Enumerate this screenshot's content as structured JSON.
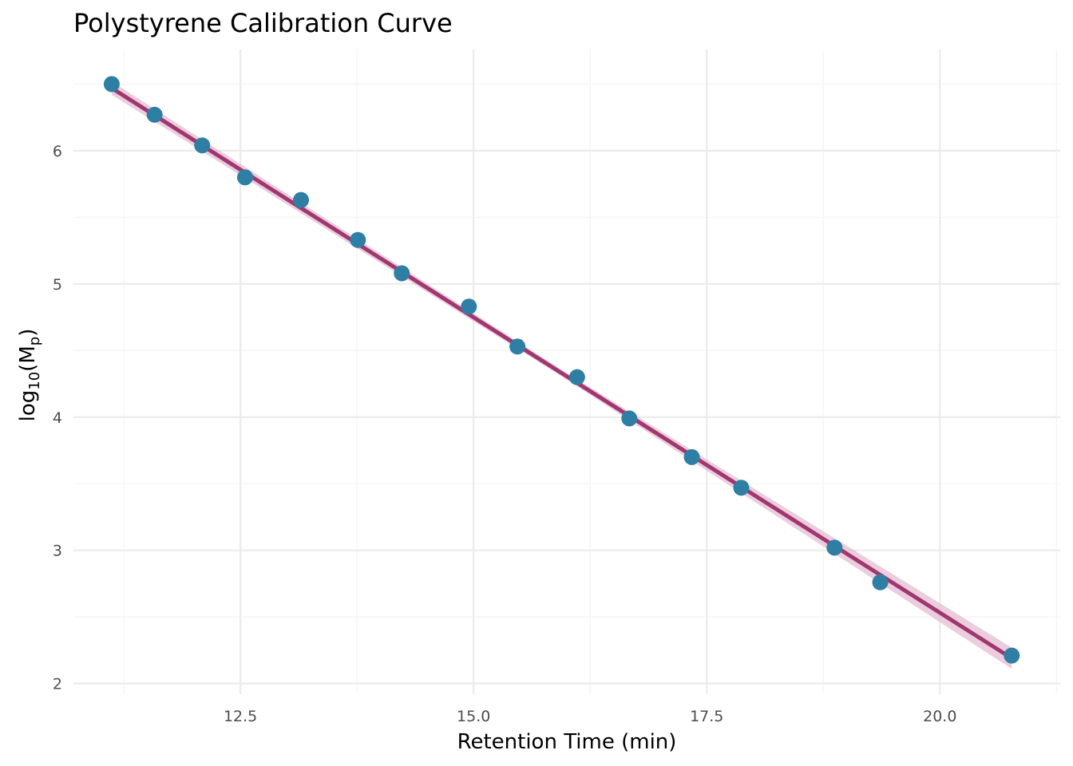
{
  "chart_data": {
    "type": "scatter",
    "title": "Polystyrene Calibration Curve",
    "xlabel": "Retention Time (min)",
    "ylabel": {
      "prefix": "log",
      "prefix_sub": "10",
      "open": "(M",
      "var_sub": "p",
      "close": ")"
    },
    "xlim": [
      10.71,
      21.29
    ],
    "ylim": [
      1.92,
      6.76
    ],
    "x_ticks": [
      12.5,
      15.0,
      17.5,
      20.0
    ],
    "x_tick_labels": [
      "12.5",
      "15.0",
      "17.5",
      "20.0"
    ],
    "y_ticks": [
      2,
      3,
      4,
      5,
      6
    ],
    "y_tick_labels": [
      "2",
      "3",
      "4",
      "5",
      "6"
    ],
    "grid": true,
    "legend": "none",
    "colors": {
      "points": "#2e7fa3",
      "fit_line": "#a0386f",
      "fit_band": "#e3b8cf",
      "grid_major": "#ebebeb",
      "grid_minor": "#f5f5f5"
    },
    "series": [
      {
        "kind": "points",
        "x": [
          11.12,
          11.58,
          12.09,
          12.55,
          13.15,
          13.76,
          14.23,
          14.95,
          15.47,
          16.11,
          16.67,
          17.34,
          17.87,
          18.87,
          19.36,
          20.77
        ],
        "y": [
          6.5,
          6.27,
          6.04,
          5.8,
          5.63,
          5.33,
          5.08,
          4.83,
          4.53,
          4.3,
          3.99,
          3.7,
          3.47,
          3.02,
          2.76,
          2.21
        ]
      },
      {
        "kind": "linear-fit",
        "x": [
          11.12,
          20.77
        ],
        "y": [
          6.47,
          2.19
        ],
        "band_halfwidth_end": [
          0.05,
          0.08
        ],
        "band_halfwidth_mid": 0.025
      }
    ]
  }
}
